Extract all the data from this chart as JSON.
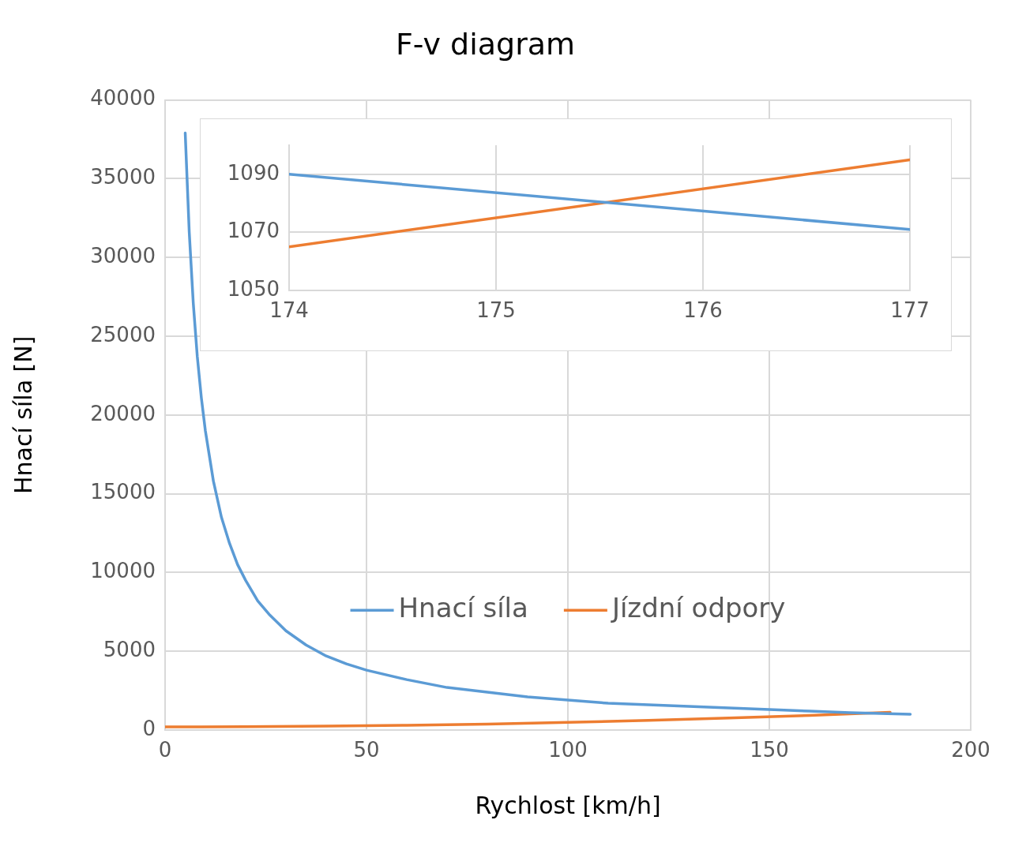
{
  "chart_data": [
    {
      "type": "line",
      "title": "F-v diagram",
      "xlabel": "Rychlost [km/h]",
      "ylabel": "Hnací síla [N]",
      "xlim": [
        0,
        200
      ],
      "xticks": [
        0,
        50,
        100,
        150,
        200
      ],
      "ylim": [
        0,
        40000
      ],
      "yticks": [
        0,
        5000,
        10000,
        15000,
        20000,
        25000,
        30000,
        35000,
        40000
      ],
      "grid": true,
      "legend": "bottom",
      "marker": "none",
      "line_style": "solid",
      "series": [
        {
          "name": "Hnací síla",
          "color": "#5b9bd5",
          "x": [
            5,
            6,
            7,
            8,
            9,
            10,
            12,
            14,
            16,
            18,
            20,
            23,
            26,
            30,
            35,
            40,
            45,
            50,
            60,
            70,
            80,
            90,
            100,
            110,
            120,
            130,
            140,
            150,
            160,
            170,
            185
          ],
          "values": [
            37900,
            31600,
            27100,
            23700,
            21100,
            19000,
            15800,
            13500,
            11850,
            10500,
            9500,
            8200,
            7300,
            6300,
            5400,
            4700,
            4200,
            3800,
            3200,
            2700,
            2400,
            2100,
            1900,
            1700,
            1600,
            1500,
            1400,
            1300,
            1200,
            1100,
            1000
          ]
        },
        {
          "name": "Jízdní odpory",
          "color": "#ed7d31",
          "x": [
            0,
            20,
            40,
            60,
            80,
            100,
            120,
            140,
            160,
            180
          ],
          "values": [
            200,
            210,
            250,
            300,
            380,
            490,
            610,
            760,
            930,
            1130
          ]
        }
      ]
    },
    {
      "type": "line",
      "xlim": [
        174,
        177
      ],
      "xticks": [
        174,
        175,
        176,
        177
      ],
      "ylim": [
        1050,
        1100
      ],
      "yticks": [
        1050,
        1070,
        1090
      ],
      "grid": true,
      "marker": "none",
      "line_style": "solid",
      "series": [
        {
          "color": "#5b9bd5",
          "x": [
            174,
            177
          ],
          "values": [
            1090,
            1071
          ]
        },
        {
          "color": "#ed7d31",
          "x": [
            174,
            177
          ],
          "values": [
            1065,
            1095
          ]
        }
      ]
    }
  ]
}
